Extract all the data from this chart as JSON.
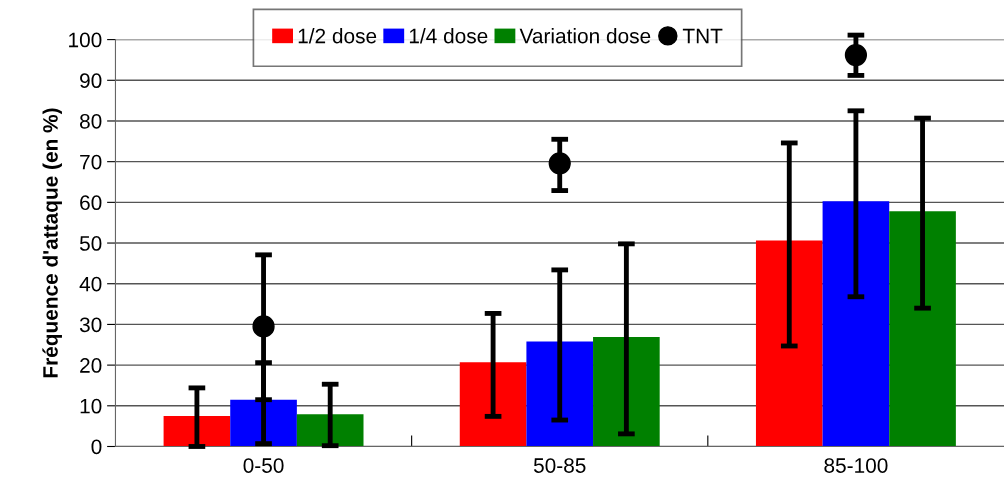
{
  "chart_data": {
    "type": "bar",
    "ylabel": "Fréquence d'attaque (en %)",
    "categories": [
      "0-50",
      "50-85",
      "85-100"
    ],
    "series": [
      {
        "name": "1/2 dose",
        "color": "#ff0000",
        "values": [
          7.5,
          20.7,
          50.6
        ],
        "errors": [
          [
            0,
            14.4
          ],
          [
            7.4,
            32.7
          ],
          [
            24.7,
            74.6
          ]
        ]
      },
      {
        "name": "1/4 dose",
        "color": "#0000ff",
        "values": [
          11.5,
          25.8,
          60.3
        ],
        "errors": [
          [
            0.7,
            20.6
          ],
          [
            6.5,
            43.4
          ],
          [
            36.8,
            82.5
          ]
        ]
      },
      {
        "name": "Variation dose",
        "color": "#008000",
        "values": [
          7.9,
          26.9,
          57.8
        ],
        "errors": [
          [
            0.2,
            15.3
          ],
          [
            3.1,
            49.8
          ],
          [
            34.0,
            80.7
          ]
        ]
      },
      {
        "name": "TNT",
        "type": "scatter",
        "color": "#000000",
        "values": [
          29.5,
          69.6,
          96.2
        ],
        "errors": [
          [
            11.5,
            47.1
          ],
          [
            62.9,
            75.5
          ],
          [
            91.2,
            101.1
          ]
        ]
      }
    ],
    "ylim": [
      0,
      100
    ],
    "yticks": [
      0,
      10,
      20,
      30,
      40,
      50,
      60,
      70,
      80,
      90,
      100
    ],
    "grid": "y",
    "legend": "top",
    "marker": "circle"
  }
}
